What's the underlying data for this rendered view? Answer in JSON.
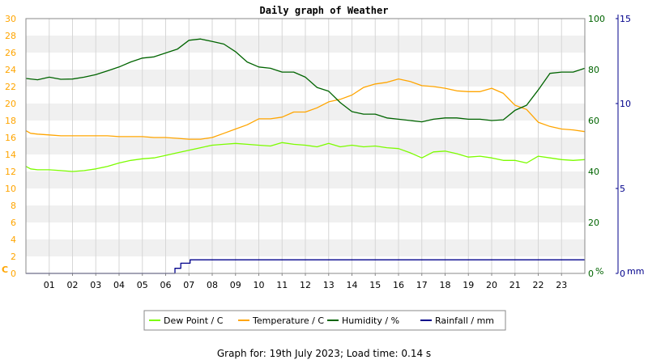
{
  "chart_data": {
    "type": "line",
    "title": "Daily graph of Weather",
    "x_ticks": [
      "01",
      "02",
      "03",
      "04",
      "05",
      "06",
      "07",
      "08",
      "09",
      "10",
      "11",
      "12",
      "13",
      "14",
      "15",
      "16",
      "17",
      "18",
      "19",
      "20",
      "21",
      "22",
      "23"
    ],
    "xlim": [
      0,
      24
    ],
    "axes": {
      "left": {
        "unit_label": "C",
        "ylim": [
          0,
          30
        ],
        "ticks": [
          0,
          2,
          4,
          6,
          8,
          10,
          12,
          14,
          16,
          18,
          20,
          22,
          24,
          26,
          28,
          30
        ],
        "color": "#ffa500"
      },
      "right1": {
        "unit_label": "%",
        "ylim": [
          0,
          100
        ],
        "ticks": [
          0,
          20,
          40,
          60,
          80,
          100
        ],
        "color": "#006400"
      },
      "right2": {
        "unit_label": "mm",
        "ylim": [
          0,
          15
        ],
        "ticks": [
          0,
          5,
          10,
          15
        ],
        "color": "#00008b"
      }
    },
    "grid": true,
    "legend_position": "bottom",
    "series": [
      {
        "name": "Dew Point / C",
        "axis": "left",
        "color": "#7cfc00",
        "x": [
          0,
          0.2,
          0.5,
          1,
          1.5,
          2,
          2.5,
          3,
          3.5,
          4,
          4.5,
          5,
          5.5,
          6,
          6.5,
          7,
          7.5,
          8,
          8.5,
          9,
          9.5,
          10,
          10.5,
          11,
          11.5,
          12,
          12.5,
          13,
          13.5,
          14,
          14.5,
          15,
          15.5,
          16,
          16.5,
          17,
          17.5,
          18,
          18.5,
          19,
          19.5,
          20,
          20.5,
          21,
          21.5,
          22,
          22.5,
          23,
          23.5,
          24
        ],
        "y": [
          12.6,
          12.3,
          12.2,
          12.2,
          12.1,
          12.0,
          12.1,
          12.3,
          12.6,
          13.0,
          13.3,
          13.5,
          13.6,
          13.9,
          14.2,
          14.5,
          14.8,
          15.1,
          15.2,
          15.3,
          15.2,
          15.1,
          15.0,
          15.4,
          15.2,
          15.1,
          14.9,
          15.3,
          14.9,
          15.1,
          14.9,
          15.0,
          14.8,
          14.7,
          14.2,
          13.6,
          14.3,
          14.4,
          14.1,
          13.7,
          13.8,
          13.6,
          13.3,
          13.3,
          13.0,
          13.8,
          13.6,
          13.4,
          13.3,
          13.4
        ]
      },
      {
        "name": "Temperature / C",
        "axis": "left",
        "color": "#ffa500",
        "x": [
          0,
          0.2,
          0.5,
          1,
          1.5,
          2,
          2.5,
          3,
          3.5,
          4,
          4.5,
          5,
          5.5,
          6,
          6.5,
          7,
          7.5,
          8,
          8.5,
          9,
          9.5,
          10,
          10.5,
          11,
          11.5,
          12,
          12.5,
          13,
          13.5,
          14,
          14.5,
          15,
          15.5,
          16,
          16.5,
          17,
          17.5,
          18,
          18.5,
          19,
          19.5,
          20,
          20.5,
          21,
          21.5,
          22,
          22.5,
          23,
          23.5,
          24
        ],
        "y": [
          16.8,
          16.5,
          16.4,
          16.3,
          16.2,
          16.2,
          16.2,
          16.2,
          16.2,
          16.1,
          16.1,
          16.1,
          16.0,
          16.0,
          15.9,
          15.8,
          15.8,
          16.0,
          16.5,
          17.0,
          17.5,
          18.2,
          18.2,
          18.4,
          19.0,
          19.0,
          19.5,
          20.2,
          20.5,
          21.0,
          21.9,
          22.3,
          22.5,
          22.9,
          22.6,
          22.1,
          22.0,
          21.8,
          21.5,
          21.4,
          21.4,
          21.8,
          21.2,
          19.8,
          19.3,
          17.8,
          17.3,
          17.0,
          16.9,
          16.7
        ]
      },
      {
        "name": "Humidity / %",
        "axis": "right1",
        "color": "#006400",
        "x": [
          0,
          0.5,
          1,
          1.5,
          2,
          2.5,
          3,
          3.5,
          4,
          4.5,
          5,
          5.5,
          6,
          6.5,
          7,
          7.5,
          8,
          8.5,
          9,
          9.5,
          10,
          10.5,
          11,
          11.5,
          12,
          12.5,
          13,
          13.5,
          14,
          14.5,
          15,
          15.5,
          16,
          16.5,
          17,
          17.5,
          18,
          18.5,
          19,
          19.5,
          20,
          20.5,
          21,
          21.5,
          22,
          22.5,
          23,
          23.5,
          24
        ],
        "y": [
          76.5,
          76,
          77,
          76.2,
          76.3,
          77,
          78,
          79.5,
          81,
          83,
          84.5,
          85,
          86.5,
          88,
          91.5,
          92,
          91,
          90,
          87,
          83,
          81,
          80.5,
          79,
          79,
          77,
          73,
          71.5,
          67,
          63.5,
          62.5,
          62.5,
          61,
          60.5,
          60,
          59.5,
          60.5,
          61,
          61,
          60.5,
          60.5,
          60,
          60.3,
          64,
          66,
          72,
          78.5,
          79,
          79,
          80.5
        ]
      },
      {
        "name": "Rainfall / mm",
        "axis": "right2",
        "color": "#00008b",
        "x": [
          0,
          6.3,
          6.4,
          6.6,
          6.65,
          7,
          7.05,
          7.5,
          24
        ],
        "y": [
          0,
          0,
          0.3,
          0.3,
          0.6,
          0.6,
          0.8,
          0.8,
          0.8
        ]
      }
    ]
  },
  "footer": {
    "text": "Graph for: 19th July 2023; Load time: 0.14 s"
  }
}
